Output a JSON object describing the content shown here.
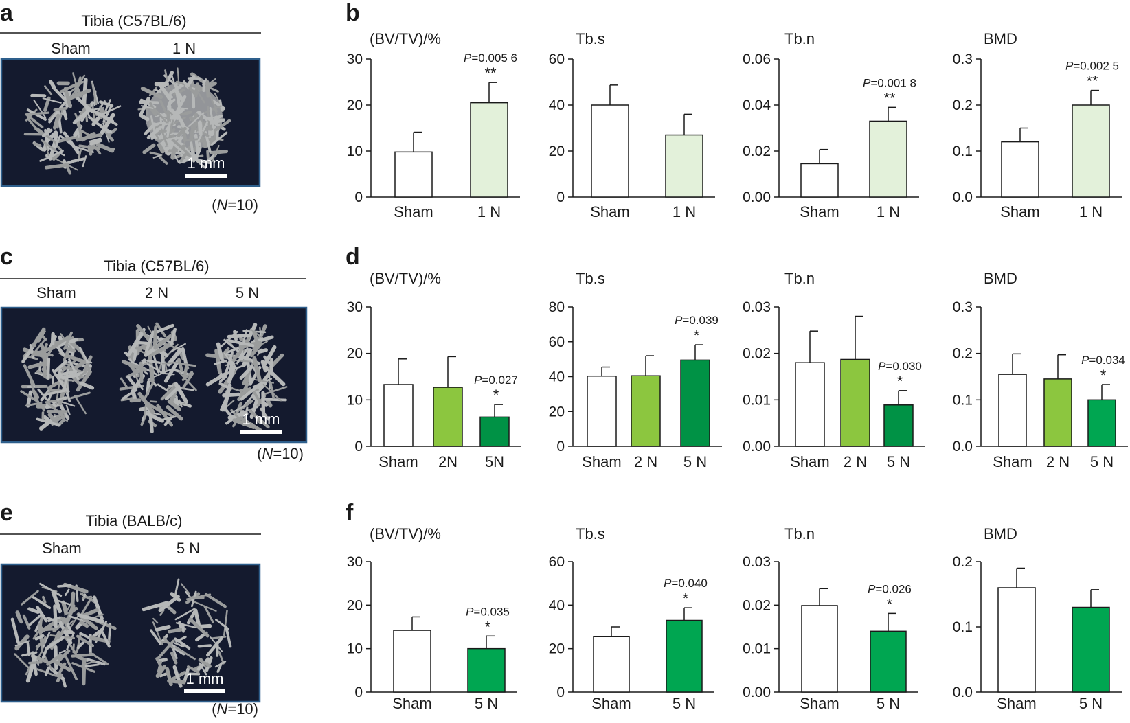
{
  "colors": {
    "white_bar": "#ffffff",
    "light_green": "#e3f1da",
    "mid_green": "#8cc63f",
    "dark_green": "#009245",
    "bright_green": "#00a651",
    "ct_background": "#141a2e",
    "ct_border": "#2e5f8c",
    "bone": "#b6b8b8"
  },
  "rows": [
    {
      "left": {
        "letter": "a",
        "title": "Tibia (C57BL/6)",
        "groups": [
          "Sham",
          "1 N"
        ],
        "scale": "1 mm",
        "n_prefix": "(",
        "n_italic": "N",
        "n_suffix": "=10)"
      },
      "right_letter": "b",
      "charts": [
        {
          "type": "bar",
          "title": "(BV/TV)/%",
          "categories": [
            "Sham",
            "1 N"
          ],
          "values": [
            9.8,
            20.5
          ],
          "errors": [
            4.3,
            4.4
          ],
          "fills": [
            "white_bar",
            "light_green"
          ],
          "ylim": [
            0,
            30
          ],
          "ticks": [
            "0",
            "10",
            "20",
            "30"
          ],
          "annotations": [
            {
              "bar": 1,
              "p": "P=0.005 6",
              "stars": "**"
            }
          ]
        },
        {
          "type": "bar",
          "title": "Tb.s",
          "categories": [
            "Sham",
            "1 N"
          ],
          "values": [
            40,
            27
          ],
          "errors": [
            8.7,
            9
          ],
          "fills": [
            "white_bar",
            "light_green"
          ],
          "ylim": [
            0,
            60
          ],
          "ticks": [
            "0",
            "20",
            "40",
            "60"
          ],
          "annotations": []
        },
        {
          "type": "bar",
          "title": "Tb.n",
          "categories": [
            "Sham",
            "1 N"
          ],
          "values": [
            0.0145,
            0.033
          ],
          "errors": [
            0.0062,
            0.006
          ],
          "fills": [
            "white_bar",
            "light_green"
          ],
          "ylim": [
            0,
            0.06
          ],
          "ticks": [
            "0.00",
            "0.02",
            "0.04",
            "0.06"
          ],
          "annotations": [
            {
              "bar": 1,
              "p": "P=0.001 8",
              "stars": "**"
            }
          ]
        },
        {
          "type": "bar",
          "title": "BMD",
          "categories": [
            "Sham",
            "1 N"
          ],
          "values": [
            0.12,
            0.2
          ],
          "errors": [
            0.03,
            0.032
          ],
          "fills": [
            "white_bar",
            "light_green"
          ],
          "ylim": [
            0,
            0.3
          ],
          "ticks": [
            "0.0",
            "0.1",
            "0.2",
            "0.3"
          ],
          "annotations": [
            {
              "bar": 1,
              "p": "P=0.002 5",
              "stars": "**"
            }
          ]
        }
      ]
    },
    {
      "left": {
        "letter": "c",
        "title": "Tibia (C57BL/6)",
        "groups": [
          "Sham",
          "2 N",
          "5 N"
        ],
        "scale": "1 mm",
        "n_prefix": "(",
        "n_italic": "N",
        "n_suffix": "=10)"
      },
      "right_letter": "d",
      "charts": [
        {
          "type": "bar",
          "title": "(BV/TV)/%",
          "categories": [
            "Sham",
            "2N",
            "5N"
          ],
          "values": [
            13.3,
            12.7,
            6.3
          ],
          "errors": [
            5.5,
            6.6,
            2.7
          ],
          "fills": [
            "white_bar",
            "mid_green",
            "dark_green"
          ],
          "ylim": [
            0,
            30
          ],
          "ticks": [
            "0",
            "10",
            "20",
            "30"
          ],
          "annotations": [
            {
              "bar": 2,
              "p": "P=0.027",
              "stars": "*"
            }
          ]
        },
        {
          "type": "bar",
          "title": "Tb.s",
          "categories": [
            "Sham",
            "2 N",
            "5 N"
          ],
          "values": [
            40.3,
            40.5,
            49.5
          ],
          "errors": [
            5.2,
            11.5,
            8.8
          ],
          "fills": [
            "white_bar",
            "mid_green",
            "dark_green"
          ],
          "ylim": [
            0,
            80
          ],
          "ticks": [
            "0",
            "20",
            "40",
            "60",
            "80"
          ],
          "annotations": [
            {
              "bar": 2,
              "p": "P=0.039",
              "stars": "*"
            }
          ]
        },
        {
          "type": "bar",
          "title": "Tb.n",
          "categories": [
            "Sham",
            "2 N",
            "5 N"
          ],
          "values": [
            0.018,
            0.0187,
            0.0089
          ],
          "errors": [
            0.0068,
            0.0093,
            0.0031
          ],
          "fills": [
            "white_bar",
            "mid_green",
            "dark_green"
          ],
          "ylim": [
            0,
            0.03
          ],
          "ticks": [
            "0.00",
            "0.01",
            "0.02",
            "0.03"
          ],
          "annotations": [
            {
              "bar": 2,
              "p": "P=0.030",
              "stars": "*"
            }
          ]
        },
        {
          "type": "bar",
          "title": "BMD",
          "categories": [
            "Sham",
            "2 N",
            "5 N"
          ],
          "values": [
            0.155,
            0.145,
            0.1
          ],
          "errors": [
            0.044,
            0.052,
            0.033
          ],
          "fills": [
            "white_bar",
            "mid_green",
            "bright_green"
          ],
          "ylim": [
            0,
            0.3
          ],
          "ticks": [
            "0.0",
            "0.1",
            "0.2",
            "0.3"
          ],
          "annotations": [
            {
              "bar": 2,
              "p": "P=0.034",
              "stars": "*"
            }
          ]
        }
      ]
    },
    {
      "left": {
        "letter": "e",
        "title": "Tibia (BALB/c)",
        "groups": [
          "Sham",
          "5 N"
        ],
        "scale": "1 mm",
        "n_prefix": "(",
        "n_italic": "N",
        "n_suffix": "=10)"
      },
      "right_letter": "f",
      "charts": [
        {
          "type": "bar",
          "title": "(BV/TV)/%",
          "categories": [
            "Sham",
            "5 N"
          ],
          "values": [
            14.2,
            10
          ],
          "errors": [
            3.1,
            2.9
          ],
          "fills": [
            "white_bar",
            "bright_green"
          ],
          "ylim": [
            0,
            30
          ],
          "ticks": [
            "0",
            "10",
            "20",
            "30"
          ],
          "annotations": [
            {
              "bar": 1,
              "p": "P=0.035",
              "stars": "*"
            }
          ]
        },
        {
          "type": "bar",
          "title": "Tb.s",
          "categories": [
            "Sham",
            "5 N"
          ],
          "values": [
            25.5,
            33
          ],
          "errors": [
            4.5,
            5.8
          ],
          "fills": [
            "white_bar",
            "bright_green"
          ],
          "ylim": [
            0,
            60
          ],
          "ticks": [
            "0",
            "20",
            "40",
            "60"
          ],
          "annotations": [
            {
              "bar": 1,
              "p": "P=0.040",
              "stars": "*"
            }
          ]
        },
        {
          "type": "bar",
          "title": "Tb.n",
          "categories": [
            "Sham",
            "5 N"
          ],
          "values": [
            0.0199,
            0.014
          ],
          "errors": [
            0.0039,
            0.0041
          ],
          "fills": [
            "white_bar",
            "bright_green"
          ],
          "ylim": [
            0,
            0.03
          ],
          "ticks": [
            "0.00",
            "0.01",
            "0.02",
            "0.03"
          ],
          "annotations": [
            {
              "bar": 1,
              "p": "P=0.026",
              "stars": "*"
            }
          ]
        },
        {
          "type": "bar",
          "title": "BMD",
          "categories": [
            "Sham",
            "5 N"
          ],
          "values": [
            0.16,
            0.13
          ],
          "errors": [
            0.03,
            0.027
          ],
          "fills": [
            "white_bar",
            "bright_green"
          ],
          "ylim": [
            0,
            0.2
          ],
          "ticks": [
            "0.0",
            "0.1",
            "0.2"
          ],
          "annotations": []
        }
      ]
    }
  ]
}
